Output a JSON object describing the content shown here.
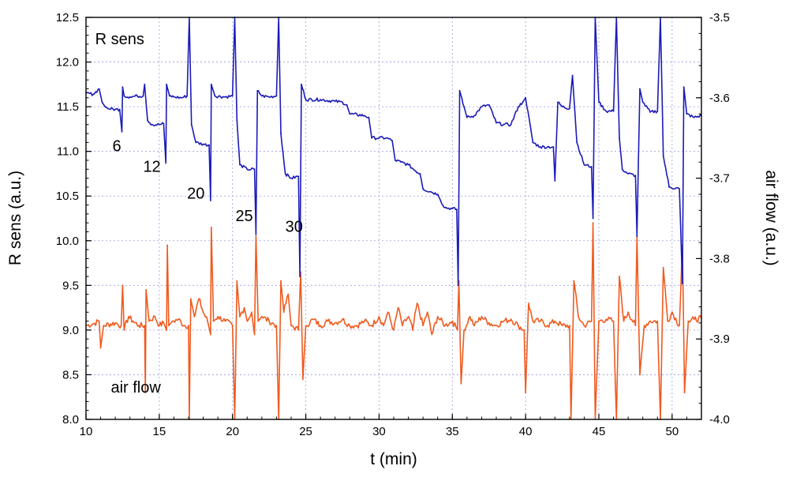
{
  "chart_data": {
    "type": "line",
    "title": "",
    "xlabel": "t (min)",
    "ylabel_left": "R sens (a.u.)",
    "ylabel_right": "air flow (a.u.)",
    "xlim": [
      10,
      52
    ],
    "ylim_left": [
      8.0,
      12.5
    ],
    "ylim_right": [
      -4.0,
      -3.5
    ],
    "grid": true,
    "x_ticks": [
      "10",
      "15",
      "20",
      "25",
      "30",
      "35",
      "40",
      "45",
      "50"
    ],
    "y_left_ticks": [
      "8.0",
      "8.5",
      "9.0",
      "9.5",
      "10.0",
      "10.5",
      "11.0",
      "11.5",
      "12.0",
      "12.5"
    ],
    "y_right_ticks": [
      "-4.0",
      "-3.9",
      "-3.8",
      "-3.7",
      "-3.6",
      "-3.5"
    ],
    "annotations": [
      {
        "text": "R sens",
        "x": 12.3,
        "y": 12.2
      },
      {
        "text": "air flow",
        "x": 13.4,
        "y": 8.3
      },
      {
        "text": "6",
        "x": 12.1,
        "y": 11.0
      },
      {
        "text": "12",
        "x": 14.5,
        "y": 10.77
      },
      {
        "text": "20",
        "x": 17.5,
        "y": 10.47
      },
      {
        "text": "25",
        "x": 20.8,
        "y": 10.22
      },
      {
        "text": "30",
        "x": 24.2,
        "y": 10.1
      }
    ],
    "series": [
      {
        "name": "R sens",
        "axis": "left",
        "color": "#1b1bb9",
        "points": [
          [
            10.0,
            11.65
          ],
          [
            10.5,
            11.64
          ],
          [
            10.9,
            11.7
          ],
          [
            11.1,
            11.55
          ],
          [
            11.3,
            11.5
          ],
          [
            11.5,
            11.48
          ],
          [
            12.0,
            11.47
          ],
          [
            12.3,
            11.47
          ],
          [
            12.45,
            11.22
          ],
          [
            12.5,
            11.72
          ],
          [
            12.6,
            11.62
          ],
          [
            13.0,
            11.61
          ],
          [
            13.5,
            11.62
          ],
          [
            13.9,
            11.62
          ],
          [
            14.0,
            11.75
          ],
          [
            14.1,
            11.55
          ],
          [
            14.2,
            11.35
          ],
          [
            14.5,
            11.3
          ],
          [
            15.0,
            11.3
          ],
          [
            15.3,
            11.31
          ],
          [
            15.45,
            10.87
          ],
          [
            15.5,
            11.75
          ],
          [
            15.7,
            11.62
          ],
          [
            16.0,
            11.61
          ],
          [
            16.5,
            11.6
          ],
          [
            16.9,
            11.62
          ],
          [
            17.05,
            12.5
          ],
          [
            17.2,
            11.3
          ],
          [
            17.5,
            11.1
          ],
          [
            18.0,
            11.08
          ],
          [
            18.4,
            11.07
          ],
          [
            18.5,
            10.45
          ],
          [
            18.55,
            11.75
          ],
          [
            18.8,
            11.62
          ],
          [
            19.5,
            11.61
          ],
          [
            20.0,
            11.62
          ],
          [
            20.15,
            12.5
          ],
          [
            20.3,
            11.35
          ],
          [
            20.5,
            10.85
          ],
          [
            21.0,
            10.8
          ],
          [
            21.5,
            10.8
          ],
          [
            21.6,
            10.07
          ],
          [
            21.7,
            11.68
          ],
          [
            22.0,
            11.62
          ],
          [
            22.5,
            11.61
          ],
          [
            23.0,
            11.62
          ],
          [
            23.15,
            12.5
          ],
          [
            23.3,
            11.2
          ],
          [
            23.6,
            10.75
          ],
          [
            24.0,
            10.7
          ],
          [
            24.5,
            10.72
          ],
          [
            24.6,
            9.6
          ],
          [
            24.7,
            11.75
          ],
          [
            25.0,
            11.58
          ],
          [
            26.0,
            11.58
          ],
          [
            27.0,
            11.56
          ],
          [
            27.5,
            11.55
          ],
          [
            27.8,
            11.52
          ],
          [
            28.0,
            11.42
          ],
          [
            29.0,
            11.4
          ],
          [
            29.3,
            11.38
          ],
          [
            29.5,
            11.15
          ],
          [
            30.0,
            11.15
          ],
          [
            30.5,
            11.15
          ],
          [
            30.9,
            11.12
          ],
          [
            31.1,
            10.9
          ],
          [
            31.5,
            10.88
          ],
          [
            32.0,
            10.85
          ],
          [
            32.5,
            10.78
          ],
          [
            32.8,
            10.75
          ],
          [
            33.0,
            10.58
          ],
          [
            33.5,
            10.55
          ],
          [
            34.0,
            10.52
          ],
          [
            34.2,
            10.45
          ],
          [
            34.5,
            10.37
          ],
          [
            35.0,
            10.36
          ],
          [
            35.3,
            10.35
          ],
          [
            35.4,
            9.5
          ],
          [
            35.5,
            11.68
          ],
          [
            35.8,
            11.5
          ],
          [
            36.0,
            11.38
          ],
          [
            36.5,
            11.4
          ],
          [
            37.0,
            11.5
          ],
          [
            37.5,
            11.52
          ],
          [
            38.0,
            11.32
          ],
          [
            38.5,
            11.3
          ],
          [
            39.0,
            11.3
          ],
          [
            39.5,
            11.5
          ],
          [
            39.8,
            11.55
          ],
          [
            40.0,
            11.6
          ],
          [
            40.5,
            11.1
          ],
          [
            41.0,
            11.05
          ],
          [
            41.5,
            11.05
          ],
          [
            41.9,
            11.05
          ],
          [
            42.0,
            10.67
          ],
          [
            42.2,
            11.55
          ],
          [
            42.5,
            11.5
          ],
          [
            43.0,
            11.48
          ],
          [
            43.2,
            11.85
          ],
          [
            43.5,
            11.1
          ],
          [
            44.0,
            10.85
          ],
          [
            44.5,
            10.83
          ],
          [
            44.6,
            10.25
          ],
          [
            44.75,
            12.5
          ],
          [
            45.0,
            11.55
          ],
          [
            45.5,
            11.45
          ],
          [
            46.0,
            11.45
          ],
          [
            46.2,
            12.5
          ],
          [
            46.4,
            11.15
          ],
          [
            46.6,
            10.8
          ],
          [
            47.0,
            10.75
          ],
          [
            47.5,
            10.73
          ],
          [
            47.6,
            10.05
          ],
          [
            47.8,
            11.7
          ],
          [
            48.0,
            11.55
          ],
          [
            48.5,
            11.44
          ],
          [
            49.0,
            11.45
          ],
          [
            49.2,
            12.5
          ],
          [
            49.4,
            10.95
          ],
          [
            49.8,
            10.6
          ],
          [
            50.5,
            10.58
          ],
          [
            50.7,
            9.52
          ],
          [
            50.8,
            11.72
          ],
          [
            51.0,
            11.42
          ],
          [
            51.5,
            11.38
          ],
          [
            52.0,
            11.4
          ]
        ]
      },
      {
        "name": "air flow",
        "axis": "left",
        "color": "#f05a1e",
        "points": [
          [
            10.0,
            9.05
          ],
          [
            10.5,
            9.07
          ],
          [
            10.9,
            9.1
          ],
          [
            11.0,
            8.8
          ],
          [
            11.2,
            9.05
          ],
          [
            12.0,
            9.08
          ],
          [
            12.4,
            9.05
          ],
          [
            12.5,
            9.5
          ],
          [
            12.6,
            9.0
          ],
          [
            12.9,
            9.15
          ],
          [
            13.2,
            9.1
          ],
          [
            13.6,
            9.05
          ],
          [
            14.0,
            9.05
          ],
          [
            14.05,
            8.3
          ],
          [
            14.1,
            9.45
          ],
          [
            14.3,
            9.1
          ],
          [
            14.7,
            9.15
          ],
          [
            15.0,
            9.05
          ],
          [
            15.3,
            9.08
          ],
          [
            15.5,
            9.0
          ],
          [
            15.55,
            9.95
          ],
          [
            15.65,
            9.05
          ],
          [
            15.9,
            9.1
          ],
          [
            16.3,
            9.12
          ],
          [
            16.7,
            9.05
          ],
          [
            17.0,
            9.05
          ],
          [
            17.05,
            8.0
          ],
          [
            17.15,
            9.35
          ],
          [
            17.4,
            9.15
          ],
          [
            17.7,
            9.35
          ],
          [
            18.0,
            9.2
          ],
          [
            18.3,
            9.1
          ],
          [
            18.5,
            8.95
          ],
          [
            18.55,
            10.15
          ],
          [
            18.7,
            9.1
          ],
          [
            19.0,
            9.15
          ],
          [
            19.5,
            9.1
          ],
          [
            20.0,
            9.05
          ],
          [
            20.15,
            8.0
          ],
          [
            20.3,
            9.55
          ],
          [
            20.5,
            9.15
          ],
          [
            20.8,
            9.25
          ],
          [
            21.0,
            9.1
          ],
          [
            21.3,
            9.2
          ],
          [
            21.5,
            8.95
          ],
          [
            21.6,
            10.05
          ],
          [
            21.75,
            9.1
          ],
          [
            22.0,
            9.15
          ],
          [
            22.5,
            9.1
          ],
          [
            23.0,
            9.05
          ],
          [
            23.15,
            8.0
          ],
          [
            23.3,
            9.55
          ],
          [
            23.5,
            9.2
          ],
          [
            23.8,
            9.4
          ],
          [
            24.0,
            9.05
          ],
          [
            24.5,
            9.0
          ],
          [
            24.65,
            9.65
          ],
          [
            24.8,
            8.45
          ],
          [
            25.0,
            9.05
          ],
          [
            25.5,
            9.12
          ],
          [
            26.0,
            9.05
          ],
          [
            26.5,
            9.1
          ],
          [
            27.0,
            9.08
          ],
          [
            27.5,
            9.12
          ],
          [
            28.0,
            9.05
          ],
          [
            28.5,
            9.05
          ],
          [
            29.0,
            9.1
          ],
          [
            29.5,
            9.05
          ],
          [
            30.0,
            9.15
          ],
          [
            30.3,
            9.05
          ],
          [
            30.6,
            9.2
          ],
          [
            31.0,
            9.0
          ],
          [
            31.3,
            9.25
          ],
          [
            31.6,
            9.05
          ],
          [
            32.0,
            9.15
          ],
          [
            32.3,
            9.0
          ],
          [
            32.6,
            9.3
          ],
          [
            33.0,
            9.05
          ],
          [
            33.3,
            9.2
          ],
          [
            33.6,
            8.95
          ],
          [
            34.0,
            9.15
          ],
          [
            34.5,
            9.05
          ],
          [
            35.0,
            9.1
          ],
          [
            35.35,
            9.0
          ],
          [
            35.45,
            9.55
          ],
          [
            35.6,
            8.4
          ],
          [
            35.8,
            9.0
          ],
          [
            36.2,
            9.15
          ],
          [
            36.5,
            9.05
          ],
          [
            37.0,
            9.15
          ],
          [
            37.5,
            9.08
          ],
          [
            38.0,
            9.05
          ],
          [
            38.5,
            9.1
          ],
          [
            39.0,
            9.12
          ],
          [
            39.5,
            9.05
          ],
          [
            39.9,
            9.0
          ],
          [
            40.0,
            8.3
          ],
          [
            40.2,
            9.3
          ],
          [
            40.5,
            9.1
          ],
          [
            41.0,
            9.1
          ],
          [
            41.5,
            9.05
          ],
          [
            42.0,
            9.1
          ],
          [
            42.5,
            9.05
          ],
          [
            43.0,
            9.05
          ],
          [
            43.1,
            8.0
          ],
          [
            43.3,
            9.55
          ],
          [
            43.6,
            9.15
          ],
          [
            44.0,
            9.05
          ],
          [
            44.5,
            9.1
          ],
          [
            44.6,
            10.2
          ],
          [
            44.75,
            8.0
          ],
          [
            45.0,
            9.1
          ],
          [
            45.5,
            9.12
          ],
          [
            46.0,
            9.1
          ],
          [
            46.2,
            8.0
          ],
          [
            46.4,
            9.6
          ],
          [
            46.7,
            9.1
          ],
          [
            47.0,
            9.2
          ],
          [
            47.5,
            9.05
          ],
          [
            47.6,
            10.05
          ],
          [
            47.8,
            8.5
          ],
          [
            48.1,
            9.05
          ],
          [
            48.5,
            9.1
          ],
          [
            49.0,
            9.1
          ],
          [
            49.2,
            8.0
          ],
          [
            49.4,
            9.7
          ],
          [
            49.7,
            9.1
          ],
          [
            50.0,
            9.2
          ],
          [
            50.5,
            9.05
          ],
          [
            50.7,
            9.95
          ],
          [
            50.85,
            8.3
          ],
          [
            51.1,
            9.1
          ],
          [
            51.5,
            9.12
          ],
          [
            52.0,
            9.13
          ]
        ]
      }
    ]
  }
}
